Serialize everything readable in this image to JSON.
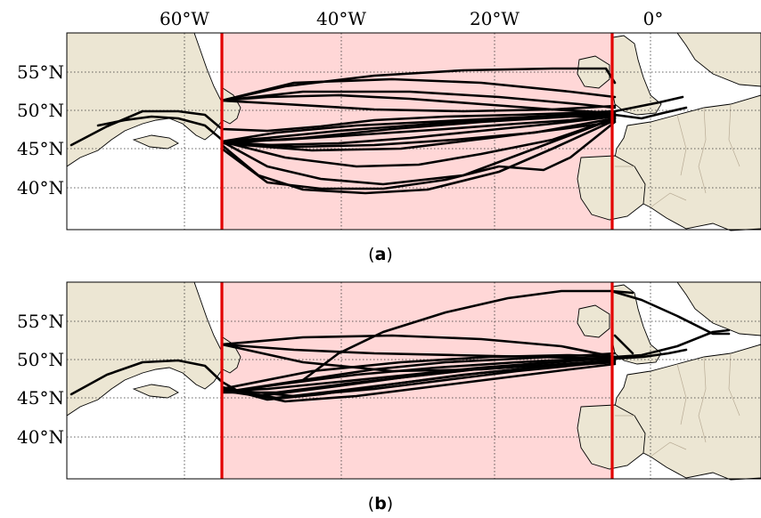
{
  "longitude_labels": [
    "60°W",
    "40°W",
    "20°W",
    "0°"
  ],
  "latitude_labels": [
    "55°N",
    "50°N",
    "45°N",
    "40°N"
  ],
  "panels": [
    {
      "id": "a",
      "caption_open": "(",
      "caption_letter": "a",
      "caption_close": ")"
    },
    {
      "id": "b",
      "caption_open": "(",
      "caption_letter": "b",
      "caption_close": ")"
    }
  ],
  "colors": {
    "land": "#ece6d3",
    "sea": "#ffffff",
    "highlight_region": "#ffd7d7",
    "region_boundary": "#e30000",
    "tracks": "#000000"
  }
}
